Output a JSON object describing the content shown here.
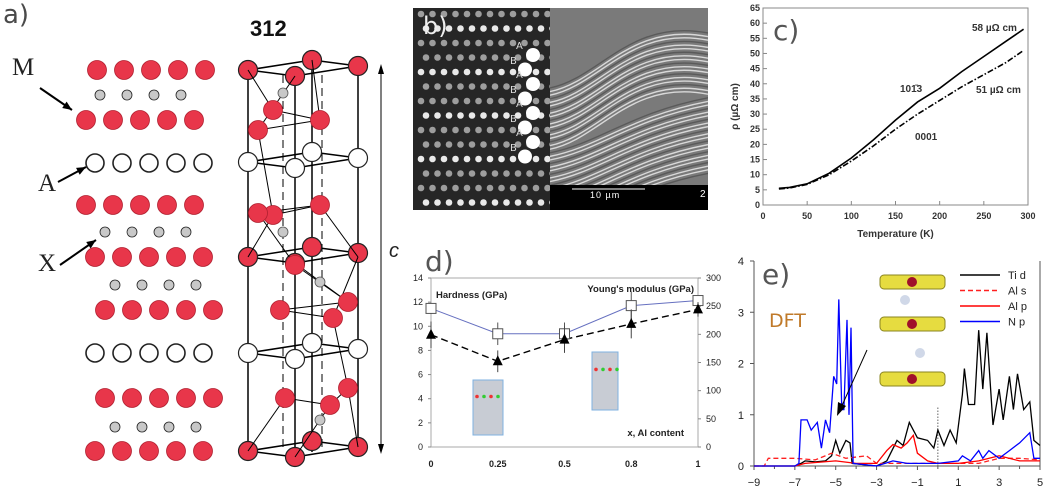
{
  "panels": {
    "a": {
      "label": "a)",
      "title": "312",
      "atom_labels": [
        "M",
        "A",
        "X"
      ],
      "axis_label": "c",
      "colors": {
        "M": "#e8364a",
        "A": "#ffffff",
        "X": "#c8c8c8"
      }
    },
    "b": {
      "label": "b)",
      "stacking": [
        "A",
        "B",
        "A",
        "B",
        "A",
        "B",
        "A",
        "B"
      ],
      "scale_bar": "10 µm",
      "scale_extra": "2"
    },
    "c": {
      "label": "c)"
    },
    "d": {
      "label": "d)"
    },
    "e": {
      "label": "e)",
      "annotation": "DFT"
    }
  },
  "chart_data": [
    {
      "panel": "c",
      "type": "line",
      "xlabel": "Temperature (K)",
      "ylabel": "ρ (µΩ cm)",
      "xlim": [
        0,
        300
      ],
      "ylim": [
        0,
        65
      ],
      "xticks": [
        0,
        50,
        100,
        150,
        200,
        250,
        300
      ],
      "yticks": [
        0,
        5,
        10,
        15,
        20,
        25,
        30,
        35,
        40,
        45,
        50,
        55,
        60,
        65
      ],
      "series": [
        {
          "name": "101̄3",
          "style": "solid",
          "color": "#000000",
          "x": [
            18,
            30,
            50,
            75,
            100,
            125,
            150,
            175,
            200,
            225,
            250,
            275,
            295
          ],
          "y": [
            5.5,
            5.8,
            7,
            10.5,
            15.5,
            21.5,
            28,
            34,
            38.5,
            44,
            49,
            54,
            58
          ]
        },
        {
          "name": "0001",
          "style": "dashdot",
          "color": "#000000",
          "x": [
            18,
            30,
            50,
            75,
            100,
            125,
            150,
            175,
            200,
            225,
            250,
            275,
            295
          ],
          "y": [
            5.3,
            5.6,
            6.8,
            10,
            14.5,
            19.5,
            25,
            30,
            34.5,
            39,
            43,
            47,
            51
          ]
        }
      ],
      "annotations": [
        "58 µΩ cm",
        "51 µΩ cm"
      ]
    },
    {
      "panel": "d",
      "type": "line",
      "xlabel": "x, Al content",
      "categories": [
        "0",
        "0.25",
        "0.5",
        "0.8",
        "1"
      ],
      "ylim_left": [
        0,
        14
      ],
      "yticks_left": [
        0,
        2,
        4,
        6,
        8,
        10,
        12,
        14
      ],
      "ylim_right": [
        0,
        300
      ],
      "yticks_right": [
        0,
        50,
        100,
        150,
        200,
        250,
        300
      ],
      "series": [
        {
          "name": "Hardness (GPa)",
          "axis": "left",
          "marker": "triangle",
          "style": "dashed",
          "color": "#000000",
          "values": [
            9.3,
            7.1,
            8.9,
            10.2,
            11.4
          ],
          "errors": [
            1.1,
            0.9,
            1.1,
            1.2,
            0.6
          ]
        },
        {
          "name": "Young's modulus (GPa)",
          "axis": "right",
          "marker": "square",
          "style": "solid",
          "color": "#6670c0",
          "values": [
            246,
            201,
            201,
            251,
            260
          ],
          "errors": [
            10,
            20,
            20,
            25,
            8
          ]
        }
      ]
    },
    {
      "panel": "e",
      "type": "line",
      "xlim": [
        -9,
        5
      ],
      "ylim": [
        0,
        4
      ],
      "xticks": [
        -9,
        -7,
        -5,
        -3,
        -1,
        1,
        3,
        5
      ],
      "yticks": [
        0,
        1,
        2,
        3,
        4
      ],
      "legend": "top-right",
      "series": [
        {
          "name": "Ti d",
          "style": "solid",
          "color": "#000000",
          "points": [
            [
              -9,
              0
            ],
            [
              -7,
              0
            ],
            [
              -6.7,
              0.05
            ],
            [
              -6.5,
              0.1
            ],
            [
              -6,
              0.08
            ],
            [
              -5.5,
              0.1
            ],
            [
              -5.2,
              0.2
            ],
            [
              -5,
              0.5
            ],
            [
              -4.8,
              0.25
            ],
            [
              -4.5,
              0.5
            ],
            [
              -4.3,
              0.45
            ],
            [
              -4.2,
              0.05
            ],
            [
              -3,
              0
            ],
            [
              -2.5,
              0.1
            ],
            [
              -2,
              0.5
            ],
            [
              -1.7,
              0.4
            ],
            [
              -1.4,
              0.85
            ],
            [
              -1.2,
              0.7
            ],
            [
              -1,
              0.55
            ],
            [
              -0.5,
              0.5
            ],
            [
              -0.2,
              0.35
            ],
            [
              0,
              0.7
            ],
            [
              0.3,
              0.4
            ],
            [
              0.6,
              0.7
            ],
            [
              0.9,
              0.45
            ],
            [
              1.2,
              1.4
            ],
            [
              1.3,
              1.9
            ],
            [
              1.5,
              1.2
            ],
            [
              1.8,
              1.2
            ],
            [
              2,
              2.65
            ],
            [
              2.2,
              1.5
            ],
            [
              2.4,
              2.6
            ],
            [
              2.7,
              0.8
            ],
            [
              3,
              1.5
            ],
            [
              3.2,
              0.9
            ],
            [
              3.5,
              1.75
            ],
            [
              3.7,
              1.1
            ],
            [
              3.9,
              1.8
            ],
            [
              4.2,
              1.1
            ],
            [
              4.5,
              1.25
            ],
            [
              4.7,
              0.5
            ],
            [
              5,
              0.4
            ]
          ]
        },
        {
          "name": "Al s",
          "style": "dashed",
          "color": "#ff2020",
          "points": [
            [
              -9,
              0
            ],
            [
              -8.5,
              0
            ],
            [
              -8.3,
              0.15
            ],
            [
              -7,
              0.15
            ],
            [
              -6,
              0.12
            ],
            [
              -5.2,
              0.25
            ],
            [
              -4.5,
              0.15
            ],
            [
              -3.5,
              0.2
            ],
            [
              -3,
              0.05
            ],
            [
              -2,
              0.05
            ],
            [
              0,
              0.05
            ],
            [
              1,
              0.05
            ],
            [
              2,
              0.05
            ],
            [
              3,
              0.15
            ],
            [
              4,
              0.15
            ],
            [
              5,
              0.12
            ]
          ]
        },
        {
          "name": "Al p",
          "style": "solid",
          "color": "#ff0000",
          "points": [
            [
              -9,
              0
            ],
            [
              -7,
              0
            ],
            [
              -6.5,
              0.05
            ],
            [
              -5,
              0.1
            ],
            [
              -4,
              0.05
            ],
            [
              -3,
              0.05
            ],
            [
              -2.5,
              0.3
            ],
            [
              -2.2,
              0.42
            ],
            [
              -1.8,
              0.35
            ],
            [
              -1.5,
              0.45
            ],
            [
              -1.2,
              0.6
            ],
            [
              -1,
              0.25
            ],
            [
              -0.5,
              0.1
            ],
            [
              0,
              0.05
            ],
            [
              1,
              0.05
            ],
            [
              2,
              0.1
            ],
            [
              3,
              0.2
            ],
            [
              4,
              0.1
            ],
            [
              5,
              0.1
            ]
          ]
        },
        {
          "name": "N p",
          "style": "solid",
          "color": "#0000ff",
          "points": [
            [
              -9,
              0
            ],
            [
              -7,
              0
            ],
            [
              -6.8,
              0.05
            ],
            [
              -6.7,
              0.9
            ],
            [
              -6.4,
              0.9
            ],
            [
              -6.2,
              0.7
            ],
            [
              -5.9,
              0.85
            ],
            [
              -5.7,
              0.35
            ],
            [
              -5.5,
              0.9
            ],
            [
              -5.3,
              0.65
            ],
            [
              -5.1,
              1.75
            ],
            [
              -4.95,
              1.6
            ],
            [
              -4.85,
              3.25
            ],
            [
              -4.7,
              1.1
            ],
            [
              -4.6,
              1.1
            ],
            [
              -4.45,
              2.85
            ],
            [
              -4.35,
              1.0
            ],
            [
              -4.25,
              2.7
            ],
            [
              -4.15,
              0.05
            ],
            [
              -3,
              0
            ],
            [
              -2.2,
              0.1
            ],
            [
              -1.5,
              0.05
            ],
            [
              0,
              0.05
            ],
            [
              1,
              0.1
            ],
            [
              1.2,
              0.2
            ],
            [
              1.6,
              0.1
            ],
            [
              2,
              0.3
            ],
            [
              2.2,
              0.15
            ],
            [
              2.5,
              0.3
            ],
            [
              3,
              0.15
            ],
            [
              3.5,
              0.3
            ],
            [
              4,
              0.45
            ],
            [
              4.5,
              0.65
            ],
            [
              4.7,
              0.15
            ],
            [
              5,
              0.15
            ]
          ]
        }
      ]
    }
  ]
}
